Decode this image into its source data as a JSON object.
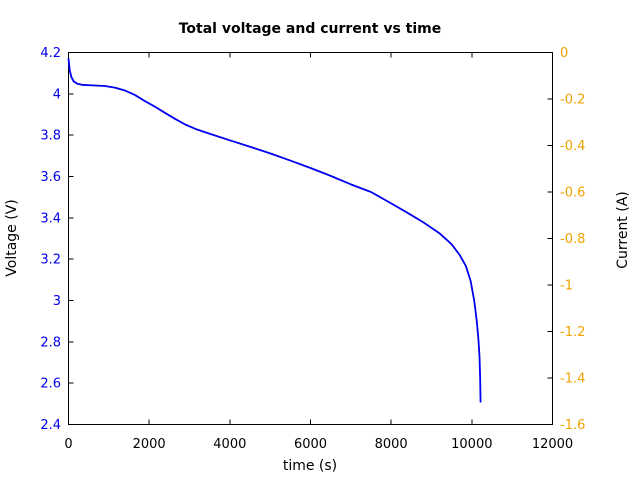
{
  "title": "Total voltage and current vs time",
  "colors": {
    "voltage_axis": "#0000ee",
    "current_axis": "#f0a202",
    "curve": "#0000ee",
    "frame": "#000000",
    "text": "#000000",
    "background": "#ffffff"
  },
  "chart_data": {
    "type": "line",
    "title": "Total voltage and current vs time",
    "xlabel": "time (s)",
    "ylabel_left": "Voltage (V)",
    "ylabel_right": "Current (A)",
    "xlim": [
      0,
      12000
    ],
    "ylim_left": [
      2.4,
      4.2
    ],
    "ylim_right": [
      -1.6,
      0
    ],
    "x_ticks": [
      0,
      2000,
      4000,
      6000,
      8000,
      10000,
      12000
    ],
    "y_ticks_left": [
      2.4,
      2.6,
      2.8,
      3.0,
      3.2,
      3.4,
      3.6,
      3.8,
      4.0,
      4.2
    ],
    "y_ticks_right": [
      -1.6,
      -1.4,
      -1.2,
      -1.0,
      -0.8,
      -0.6,
      -0.4,
      -0.2,
      0
    ],
    "grid": false,
    "legend": "none",
    "series": [
      {
        "name": "Total voltage",
        "axis": "left",
        "color": "#0000ee",
        "x": [
          0,
          30,
          70,
          130,
          220,
          360,
          600,
          900,
          1150,
          1400,
          1650,
          1900,
          2150,
          2400,
          2650,
          2900,
          3150,
          3500,
          4000,
          4500,
          5000,
          5500,
          6000,
          6500,
          7000,
          7500,
          8000,
          8400,
          8800,
          9200,
          9500,
          9700,
          9850,
          9970,
          10060,
          10120,
          10160,
          10190,
          10207,
          10216
        ],
        "y": [
          4.17,
          4.115,
          4.082,
          4.06,
          4.049,
          4.043,
          4.041,
          4.038,
          4.03,
          4.016,
          3.994,
          3.964,
          3.937,
          3.907,
          3.878,
          3.851,
          3.83,
          3.807,
          3.775,
          3.744,
          3.712,
          3.677,
          3.641,
          3.603,
          3.562,
          3.525,
          3.47,
          3.425,
          3.378,
          3.325,
          3.272,
          3.22,
          3.168,
          3.095,
          2.998,
          2.905,
          2.82,
          2.73,
          2.62,
          2.51
        ]
      }
    ]
  }
}
